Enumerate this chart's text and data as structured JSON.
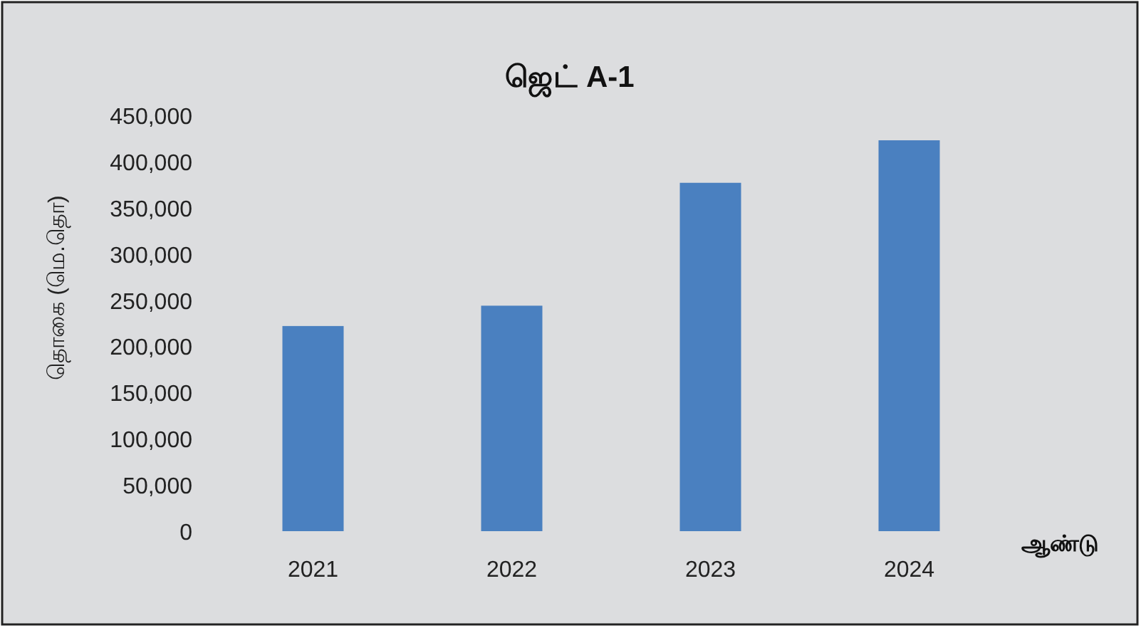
{
  "chart_data": {
    "type": "bar",
    "title": "ஜெட் A-1",
    "xlabel": "ஆண்டு",
    "ylabel": "தொகை (மெ.தொ)",
    "categories": [
      "2021",
      "2022",
      "2023",
      "2024"
    ],
    "values": [
      222000,
      244000,
      377000,
      423000
    ],
    "color": "#4a80c0",
    "ylim": [
      0,
      450000
    ],
    "yticks": [
      {
        "value": 0,
        "label": "0"
      },
      {
        "value": 50000,
        "label": "50,000"
      },
      {
        "value": 100000,
        "label": "100,000"
      },
      {
        "value": 150000,
        "label": "150,000"
      },
      {
        "value": 200000,
        "label": "200,000"
      },
      {
        "value": 250000,
        "label": "250,000"
      },
      {
        "value": 300000,
        "label": "300,000"
      },
      {
        "value": 350000,
        "label": "350,000"
      },
      {
        "value": 400000,
        "label": "400,000"
      },
      {
        "value": 450000,
        "label": "450,000"
      }
    ],
    "grid": false
  }
}
